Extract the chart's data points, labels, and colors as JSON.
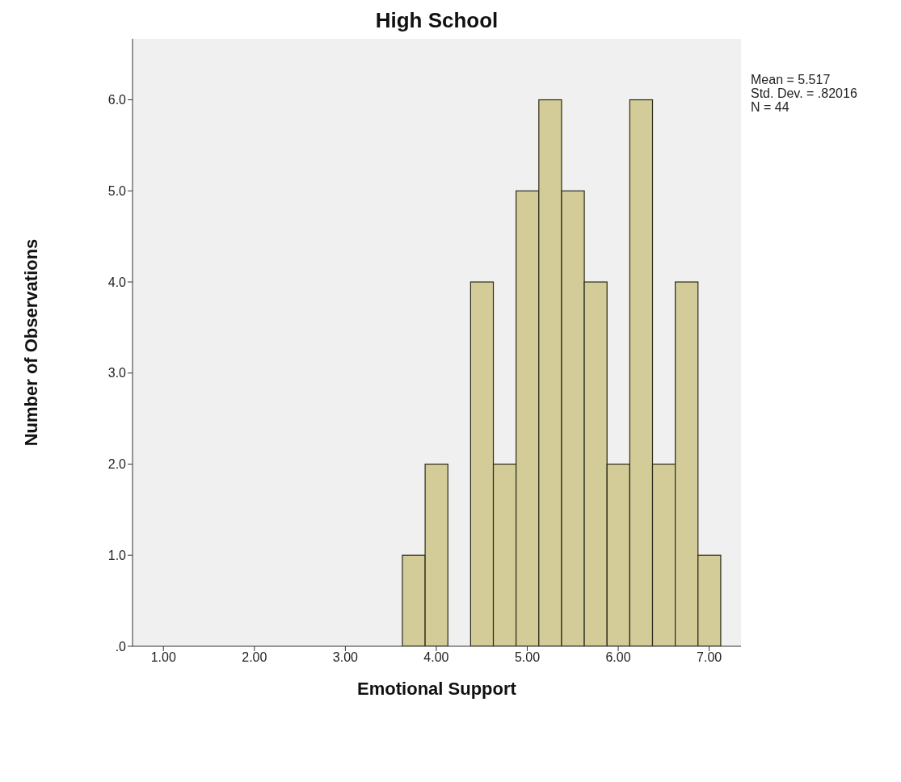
{
  "chart_data": {
    "type": "histogram",
    "title": "High School",
    "xlabel": "Emotional Support",
    "ylabel": "Number of Observations",
    "bins": [
      3.625,
      3.875,
      4.125,
      4.375,
      4.625,
      4.875,
      5.125,
      5.375,
      5.625,
      5.875,
      6.125,
      6.375,
      6.625,
      6.875,
      7.125
    ],
    "values": [
      1,
      2,
      0,
      4,
      2,
      5,
      6,
      5,
      4,
      2,
      6,
      2,
      4,
      1
    ],
    "color": "#d3cc98",
    "xlim": [
      0.66,
      7.35
    ],
    "xticks": [
      {
        "value": 1,
        "label": "1.00"
      },
      {
        "value": 2,
        "label": "2.00"
      },
      {
        "value": 3,
        "label": "3.00"
      },
      {
        "value": 4,
        "label": "4.00"
      },
      {
        "value": 5,
        "label": "5.00"
      },
      {
        "value": 6,
        "label": "6.00"
      },
      {
        "value": 7,
        "label": "7.00"
      }
    ],
    "ylim": [
      0,
      6.67
    ],
    "yticks": [
      {
        "value": 0,
        "label": ".0"
      },
      {
        "value": 1,
        "label": "1.0"
      },
      {
        "value": 2,
        "label": "2.0"
      },
      {
        "value": 3,
        "label": "3.0"
      },
      {
        "value": 4,
        "label": "4.0"
      },
      {
        "value": 5,
        "label": "5.0"
      },
      {
        "value": 6,
        "label": "6.0"
      }
    ],
    "annotations": [
      "Mean = 5.517",
      "Std. Dev. = .82016",
      "N = 44"
    ]
  }
}
